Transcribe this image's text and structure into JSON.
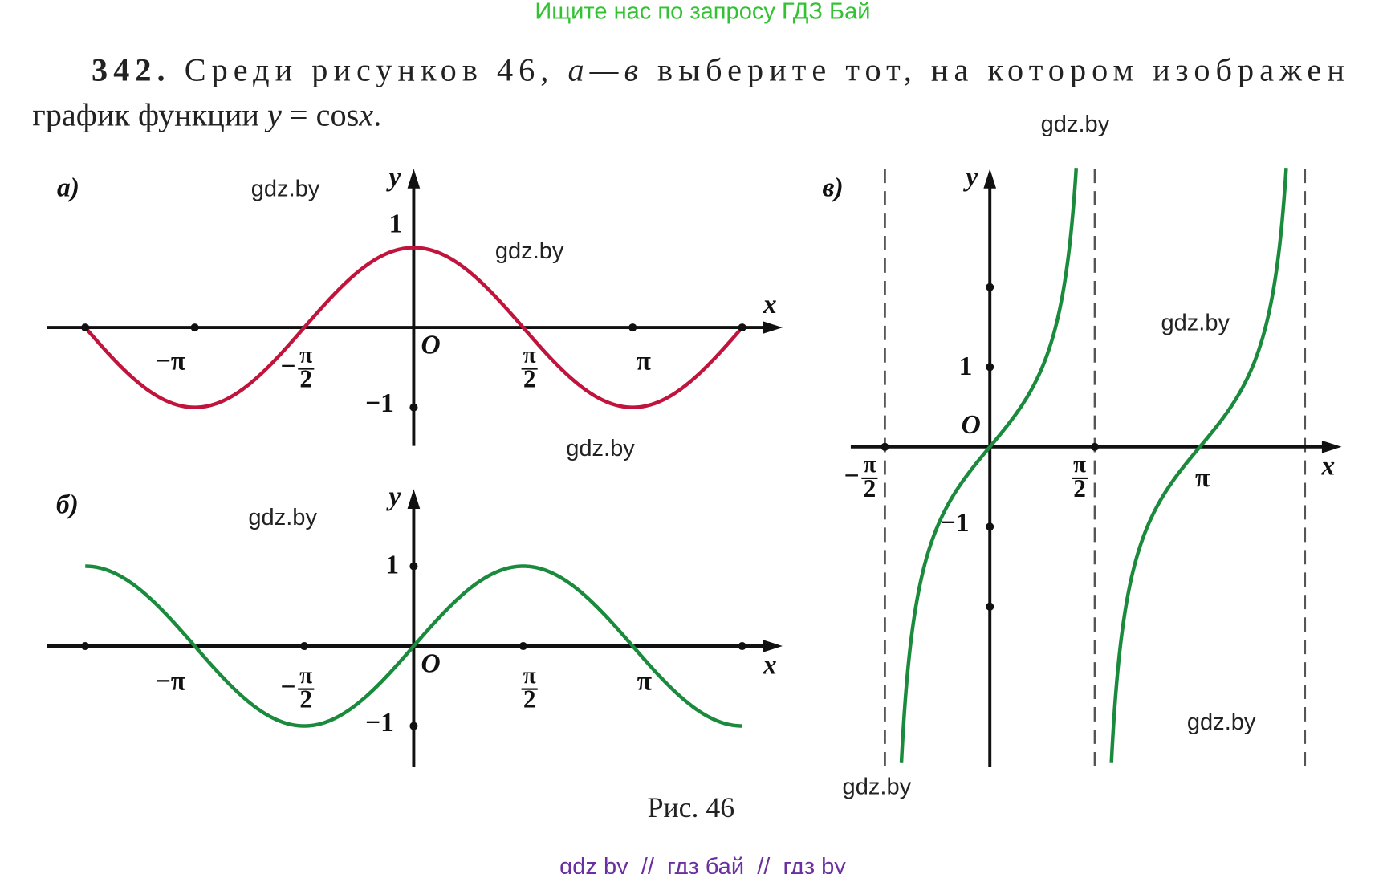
{
  "header": {
    "banner": "Ищите нас по запросу ГДЗ Бай"
  },
  "problem": {
    "line1": [
      "342.",
      " Среди рисунков 46, ",
      "а—в",
      " выберите тот, на котором изображен"
    ],
    "line2": [
      "график функции ",
      "y",
      " = cos",
      "x",
      "."
    ]
  },
  "figures": [
    {
      "label": "а)",
      "axis_x": "x",
      "axis_y": "y",
      "origin": "O",
      "y_ticks": [
        "1",
        "−1"
      ],
      "x_ticks": [
        "−π",
        {
          "sign": "−",
          "numerator": "π",
          "denominator": "2"
        },
        {
          "numerator": "π",
          "denominator": "2"
        },
        "π"
      ]
    },
    {
      "label": "б)",
      "axis_x": "x",
      "axis_y": "y",
      "origin": "O",
      "y_ticks": [
        "1",
        "−1"
      ],
      "x_ticks": [
        "−π",
        {
          "sign": "−",
          "numerator": "π",
          "denominator": "2"
        },
        {
          "numerator": "π",
          "denominator": "2"
        },
        "π"
      ]
    },
    {
      "label": "в)",
      "axis_x": "x",
      "axis_y": "y",
      "origin": "O",
      "y_ticks": [
        "1",
        "−1"
      ],
      "x_ticks": [
        {
          "sign": "−",
          "numerator": "π",
          "denominator": "2"
        },
        {
          "numerator": "π",
          "denominator": "2"
        },
        "π"
      ]
    }
  ],
  "caption": "Рис. 46",
  "watermarks": [
    "gdz.by",
    "gdz.by",
    "gdz.by",
    "gdz.by",
    "gdz.by",
    "gdz.by",
    "gdz.by",
    "gdz.by"
  ],
  "footer": "gdz by  //  гдз бай  //  гдз by"
}
